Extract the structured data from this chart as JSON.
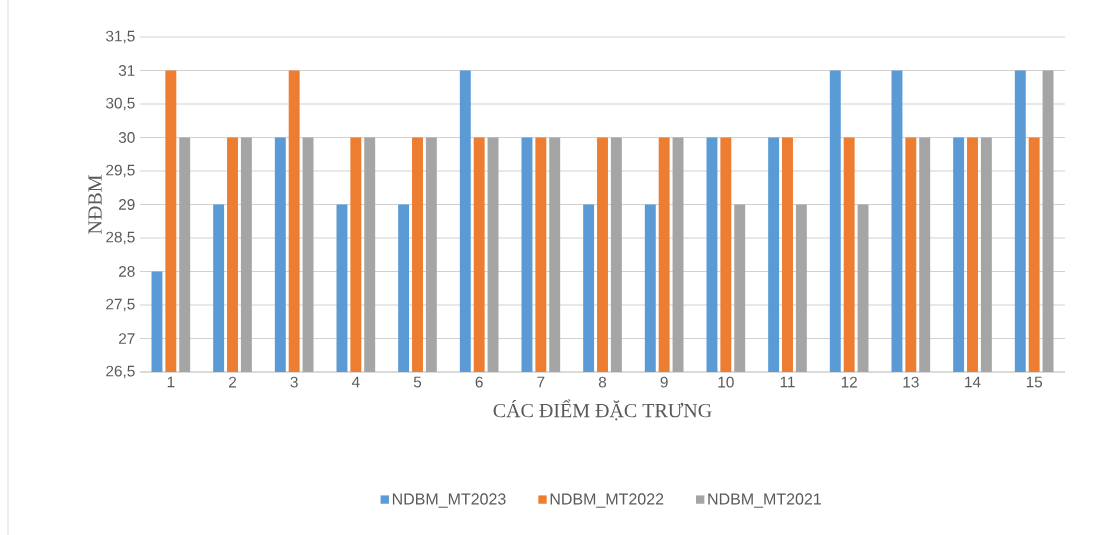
{
  "chart_data": {
    "type": "bar",
    "xlabel": "CÁC ĐIỂM ĐẶC TRƯNG",
    "ylabel": "NĐBM",
    "categories": [
      "1",
      "2",
      "3",
      "4",
      "5",
      "6",
      "7",
      "8",
      "9",
      "10",
      "11",
      "12",
      "13",
      "14",
      "15"
    ],
    "series": [
      {
        "name": "NDBM_MT2023",
        "color": "#5b9bd5",
        "values": [
          28,
          29,
          30,
          29,
          29,
          31,
          30,
          29,
          29,
          30,
          30,
          31,
          31,
          30,
          31
        ]
      },
      {
        "name": "NDBM_MT2022",
        "color": "#ed7d31",
        "values": [
          31,
          30,
          31,
          30,
          30,
          30,
          30,
          30,
          30,
          30,
          30,
          30,
          30,
          30,
          30
        ]
      },
      {
        "name": "NDBM_MT2021",
        "color": "#a5a5a5",
        "values": [
          30,
          30,
          30,
          30,
          30,
          30,
          30,
          30,
          30,
          29,
          29,
          29,
          30,
          30,
          31
        ]
      }
    ],
    "ylim": [
      26.5,
      31.5
    ],
    "yticks": [
      {
        "value": 26.5,
        "label": "26,5"
      },
      27,
      {
        "value": 27.5,
        "label": "27,5"
      },
      28,
      {
        "value": 28.5,
        "label": "28,5"
      },
      29,
      {
        "value": 29.5,
        "label": "29,5"
      },
      30,
      {
        "value": 30.5,
        "label": "30,5"
      },
      31,
      {
        "value": 31.5,
        "label": "31,5"
      }
    ],
    "grid": "y",
    "legend": "bottom"
  }
}
